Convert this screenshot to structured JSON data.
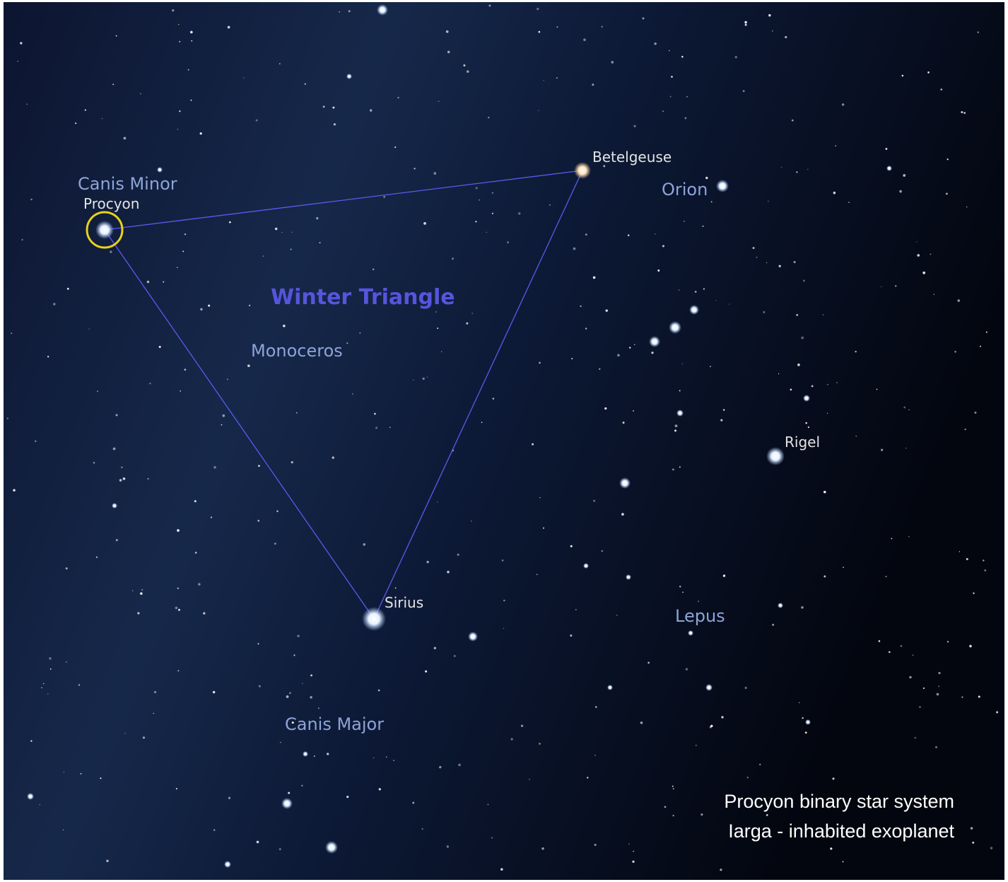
{
  "asterism": "Winter Triangle",
  "constellations": [
    "Canis Minor",
    "Orion",
    "Monoceros",
    "Canis Major",
    "Lepus"
  ],
  "stars": [
    "Procyon",
    "Betelgeuse",
    "Sirius",
    "Rigel"
  ],
  "caption": [
    "Procyon binary star system",
    "Iarga - inhabited exoplanet"
  ]
}
